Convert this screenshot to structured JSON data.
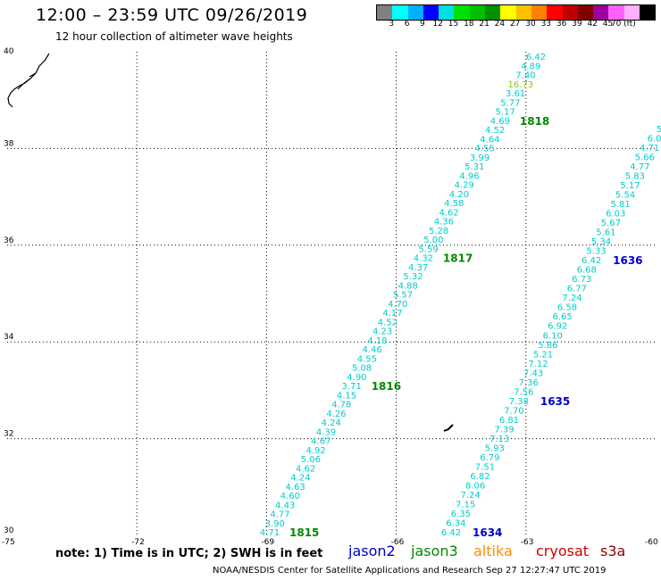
{
  "title": "12:00 – 23:59 UTC 09/26/2019",
  "subtitle": "12 hour collection of altimeter wave heights",
  "scale": {
    "colors": [
      "#808080",
      "#00ffff",
      "#00b0ff",
      "#0000ff",
      "#00e0e0",
      "#00e000",
      "#00c000",
      "#009000",
      "#ffff00",
      "#ffc000",
      "#ff8000",
      "#ff0000",
      "#c00000",
      "#800000",
      "#a000a0",
      "#ff60ff",
      "#ffb0ff",
      "#000000"
    ],
    "labels": [
      "3",
      "6",
      "9",
      "12",
      "15",
      "18",
      "21",
      "24",
      "27",
      "30",
      "33",
      "36",
      "39",
      "42",
      "45",
      "70 (ft)"
    ]
  },
  "axes": {
    "lat_ticks": [
      "40",
      "38",
      "36",
      "34",
      "32",
      "30"
    ],
    "lon_ticks": [
      "-75",
      "-72",
      "-69",
      "-66",
      "-63",
      "-60"
    ]
  },
  "note": "note:  1) Time is in UTC;  2) SWH is in feet",
  "satellites": [
    {
      "name": "jason2",
      "color": "#0000cc"
    },
    {
      "name": "jason3",
      "color": "#008800"
    },
    {
      "name": "altika",
      "color": "#ff8c00"
    },
    {
      "name": "cryosat",
      "color": "#cc0000"
    },
    {
      "name": "s3a",
      "color": "#8b0000"
    }
  ],
  "footer": "NOAA/NESDIS Center for Satellite Applications and Research    Sep 27 12:27:47 UTC 2019",
  "tracks": [
    {
      "satellite": "jason3",
      "color": "#00cccc",
      "values": [
        "4.71",
        "3.90",
        "4.77",
        "4.43",
        "4.60",
        "4.63",
        "4.24",
        "4.62",
        "5.06",
        "4.92",
        "4.67",
        "4.39",
        "4.24",
        "4.26",
        "4.78",
        "4.15",
        "3.71",
        "4.90",
        "5.08",
        "4.55",
        "4.46",
        "4.18",
        "4.23",
        "4.52",
        "4.17",
        "4.70",
        "5.57",
        "4.88",
        "5.32",
        "4.37",
        "4.32",
        "5.59",
        "5.00",
        "5.28",
        "4.36",
        "4.62",
        "4.58",
        "4.20",
        "4.29",
        "4.96",
        "5.31",
        "3.99",
        "4.55",
        "4.64",
        "4.52",
        "4.69",
        "5.17",
        "5.77",
        "3.61",
        "16.73",
        "7.40",
        "4.89",
        "6.42"
      ],
      "highlight": {
        "index": 49,
        "color": "#88cc00"
      },
      "times": [
        {
          "label": "1815",
          "at": 0
        },
        {
          "label": "1816",
          "at": 16
        },
        {
          "label": "1817",
          "at": 30
        },
        {
          "label": "1818",
          "at": 45
        }
      ]
    },
    {
      "satellite": "jason2",
      "color": "#00cccc",
      "values": [
        "6.42",
        "6.34",
        "6.35",
        "7.15",
        "7.24",
        "8.06",
        "6.82",
        "7.51",
        "6.79",
        "5.93",
        "7.13",
        "7.39",
        "6.81",
        "7.70",
        "7.38",
        "7.56",
        "7.36",
        "7.43",
        "7.12",
        "5.21",
        "5.86",
        "6.10",
        "6.92",
        "6.65",
        "6.58",
        "7.24",
        "6.77",
        "6.73",
        "6.68",
        "6.42",
        "5.33",
        "5.34",
        "5.61",
        "5.67",
        "6.03",
        "5.81",
        "5.54",
        "5.17",
        "5.83",
        "4.77",
        "5.66",
        "4.71",
        "6.0",
        "5"
      ],
      "times": [
        {
          "label": "1634",
          "at": 0
        },
        {
          "label": "1635",
          "at": 14
        },
        {
          "label": "1636",
          "at": 29
        }
      ]
    }
  ]
}
